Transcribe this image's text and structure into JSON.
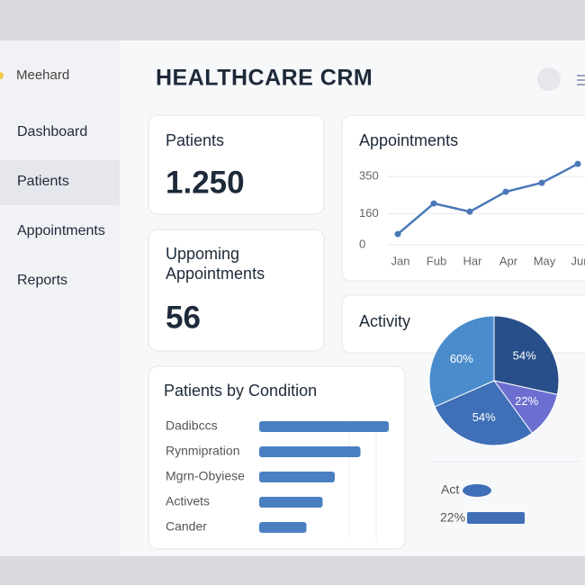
{
  "sidebar": {
    "logo": "Meehard",
    "nav": [
      "Dashboard",
      "Patients",
      "Appointments",
      "Reports"
    ]
  },
  "header": {
    "title": "HEALTHCARE CRM"
  },
  "cards": [
    {
      "label": "Patients",
      "value": "1.250"
    },
    {
      "label": "Uppoming Appointments",
      "value": "56"
    }
  ],
  "appointments": {
    "type": "line",
    "title": "Appointments",
    "categories": [
      "Jan",
      "Fub",
      "Har",
      "Apr",
      "May",
      "Jun"
    ],
    "values": [
      55,
      212,
      170,
      272,
      318,
      415
    ],
    "ylim": [
      0,
      420
    ],
    "yticks": [
      0,
      160,
      350
    ],
    "color": "#4a78b8",
    "grid": true
  },
  "activity": {
    "type": "pie",
    "title": "Activity",
    "values": [
      54,
      22,
      54,
      60
    ],
    "value_labels": [
      "54%",
      "22%",
      "54%",
      "60%"
    ],
    "colors": [
      "#284f8a",
      "#6c6fcf",
      "#3f6fb6",
      "#4a8ccb"
    ]
  },
  "activity_rows": [
    "Act",
    "22%"
  ],
  "conditions": {
    "type": "bar",
    "title": "Patients by Condition",
    "categories": [
      "Dadibccs",
      "Rynmipration",
      "Mgrn-Obyiese",
      "Activets",
      "Cander"
    ],
    "values": [
      96,
      75,
      56,
      47,
      35
    ],
    "color": "#4a80c2"
  }
}
